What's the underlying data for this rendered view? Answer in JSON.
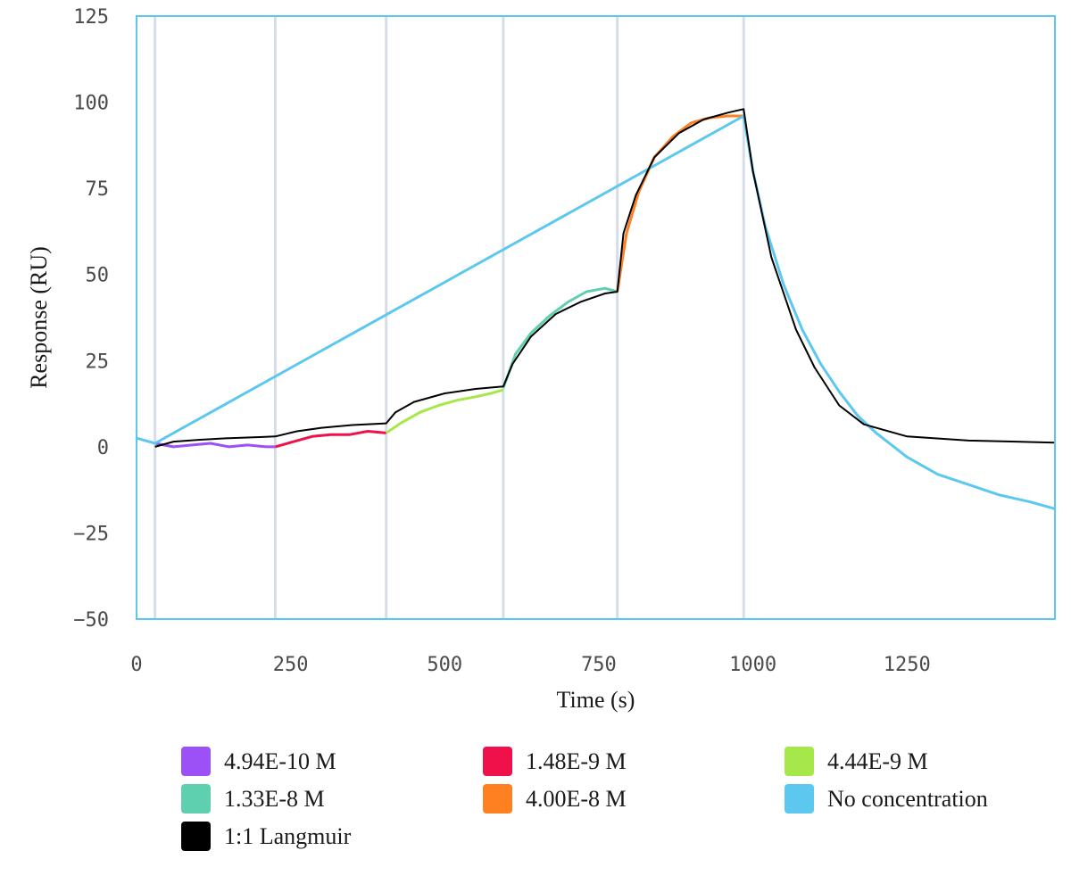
{
  "chart_data": {
    "type": "line",
    "xlabel": "Time (s)",
    "ylabel": "Response (RU)",
    "xlim": [
      0,
      1490
    ],
    "ylim": [
      -50,
      125
    ],
    "x_ticks": [
      0,
      250,
      500,
      750,
      1000,
      1250
    ],
    "y_ticks": [
      -50,
      -25,
      0,
      25,
      50,
      75,
      100,
      125
    ],
    "grid": false,
    "plot_border_color": "#5bc8f0",
    "vertical_markers": [
      30,
      225,
      405,
      595,
      780,
      985
    ],
    "vertical_marker_color": "#d6dde6",
    "legend_position": "bottom",
    "series": [
      {
        "name": "4.94E-10 M",
        "color": "#9b51f5",
        "x": [
          30,
          60,
          90,
          120,
          150,
          180,
          210,
          225
        ],
        "y": [
          1,
          0,
          0.5,
          1,
          0,
          0.5,
          0,
          0
        ]
      },
      {
        "name": "1.48E-9 M",
        "color": "#f0104a",
        "x": [
          225,
          255,
          285,
          315,
          345,
          375,
          405
        ],
        "y": [
          0,
          1.5,
          3,
          3.5,
          3.5,
          4.5,
          4
        ]
      },
      {
        "name": "4.44E-9 M",
        "color": "#a6e84a",
        "x": [
          405,
          430,
          460,
          490,
          520,
          550,
          575,
          595
        ],
        "y": [
          4,
          7,
          10,
          12,
          13.5,
          14.5,
          15.5,
          16.5
        ]
      },
      {
        "name": "1.33E-8 M",
        "color": "#5ed0b0",
        "x": [
          595,
          615,
          640,
          670,
          700,
          730,
          760,
          780
        ],
        "y": [
          17,
          27,
          33,
          38,
          42,
          45,
          46,
          45
        ]
      },
      {
        "name": "4.00E-8 M",
        "color": "#ff8020",
        "x": [
          780,
          795,
          815,
          840,
          870,
          900,
          930,
          960,
          985
        ],
        "y": [
          45,
          62,
          74,
          84,
          90,
          94,
          95.5,
          96,
          96
        ]
      },
      {
        "name": "No concentration",
        "color": "#5cc8f0",
        "x": [
          0,
          30,
          985,
          1000,
          1020,
          1050,
          1080,
          1110,
          1140,
          1170,
          1200,
          1250,
          1300,
          1350,
          1400,
          1450,
          1490
        ],
        "y": [
          2.5,
          1,
          96,
          80,
          64,
          47,
          34,
          24,
          16,
          9,
          4,
          -3,
          -8,
          -11,
          -14,
          -16,
          -18
        ]
      },
      {
        "name": "1:1 Langmuir",
        "color": "#000000",
        "x": [
          30,
          60,
          100,
          150,
          200,
          225,
          260,
          300,
          350,
          405,
          420,
          450,
          500,
          550,
          595,
          610,
          640,
          680,
          720,
          760,
          780,
          790,
          810,
          840,
          880,
          920,
          960,
          985,
          1000,
          1030,
          1070,
          1100,
          1140,
          1180,
          1250,
          1350,
          1490
        ],
        "y": [
          0,
          1.5,
          2,
          2.5,
          2.8,
          3,
          4.5,
          5.5,
          6.3,
          6.8,
          10,
          13,
          15.5,
          16.8,
          17.5,
          24,
          32,
          38.5,
          42,
          44.5,
          45,
          62,
          73,
          84,
          91,
          95,
          97,
          98,
          80,
          55,
          34,
          23,
          12,
          6.5,
          3,
          1.8,
          1.2
        ]
      }
    ]
  }
}
